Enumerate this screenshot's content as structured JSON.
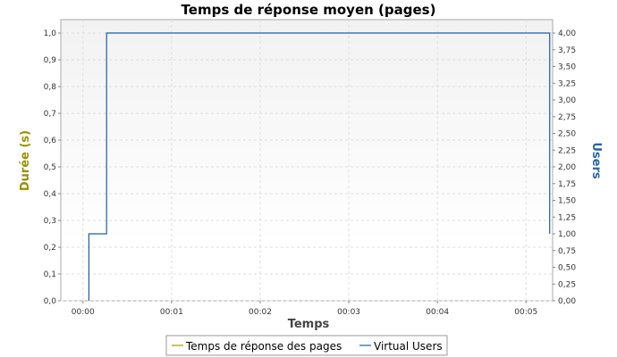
{
  "colors": {
    "response_series": "#a59a00",
    "users_series": "#1f5fa0",
    "left_axis_label": "#9a9000",
    "right_axis_label": "#2a64a8",
    "grid": "#dddddd",
    "plot_border": "#aaaaaa"
  },
  "chart_data": {
    "type": "line",
    "title": "Temps de réponse moyen (pages)",
    "xlabel": "Temps",
    "ylabel_left": "Durée (s)",
    "ylabel_right": "Users",
    "x_unit": "seconds",
    "xlim": [
      -15,
      318
    ],
    "ylim_left": [
      0,
      1.05
    ],
    "ylim_right": [
      0,
      4.2
    ],
    "grid": true,
    "legend_position": "bottom",
    "x_ticks": [
      {
        "value": 0,
        "label": "00:00"
      },
      {
        "value": 60,
        "label": "00:01"
      },
      {
        "value": 120,
        "label": "00:02"
      },
      {
        "value": 180,
        "label": "00:03"
      },
      {
        "value": 240,
        "label": "00:04"
      },
      {
        "value": 300,
        "label": "00:05"
      }
    ],
    "y_ticks_left": [
      {
        "value": 0.0,
        "label": "0,0"
      },
      {
        "value": 0.1,
        "label": "0,1"
      },
      {
        "value": 0.2,
        "label": "0,2"
      },
      {
        "value": 0.3,
        "label": "0,3"
      },
      {
        "value": 0.4,
        "label": "0,4"
      },
      {
        "value": 0.5,
        "label": "0,5"
      },
      {
        "value": 0.6,
        "label": "0,6"
      },
      {
        "value": 0.7,
        "label": "0,7"
      },
      {
        "value": 0.8,
        "label": "0,8"
      },
      {
        "value": 0.9,
        "label": "0,9"
      },
      {
        "value": 1.0,
        "label": "1,0"
      }
    ],
    "y_ticks_right": [
      {
        "value": 0.0,
        "label": "0,00"
      },
      {
        "value": 0.25,
        "label": "0,25"
      },
      {
        "value": 0.5,
        "label": "0,50"
      },
      {
        "value": 0.75,
        "label": "0,75"
      },
      {
        "value": 1.0,
        "label": "1,00"
      },
      {
        "value": 1.25,
        "label": "1,25"
      },
      {
        "value": 1.5,
        "label": "1,50"
      },
      {
        "value": 1.75,
        "label": "1,75"
      },
      {
        "value": 2.0,
        "label": "2,00"
      },
      {
        "value": 2.25,
        "label": "2,25"
      },
      {
        "value": 2.5,
        "label": "2,50"
      },
      {
        "value": 2.75,
        "label": "2,75"
      },
      {
        "value": 3.0,
        "label": "3,00"
      },
      {
        "value": 3.25,
        "label": "3,25"
      },
      {
        "value": 3.5,
        "label": "3,50"
      },
      {
        "value": 3.75,
        "label": "3,75"
      },
      {
        "value": 4.0,
        "label": "4,00"
      }
    ],
    "series": [
      {
        "name": "Temps de réponse des pages",
        "axis": "left",
        "step": true,
        "x": [],
        "values": []
      },
      {
        "name": "Virtual Users",
        "axis": "right",
        "step": true,
        "x": [
          4,
          4,
          16,
          16,
          316,
          316
        ],
        "values": [
          0,
          1,
          1,
          4,
          4,
          1
        ]
      }
    ]
  }
}
